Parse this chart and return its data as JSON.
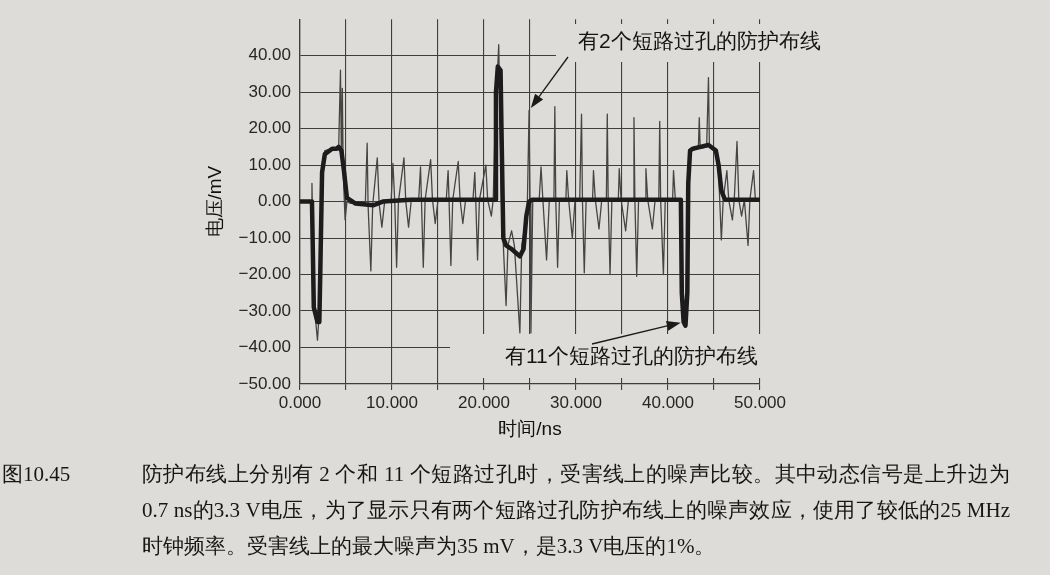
{
  "chart_data": {
    "type": "line",
    "xlabel": "时间/ns",
    "ylabel": "电压/mV",
    "xlim": [
      0,
      50
    ],
    "xticks": [
      {
        "value": 0,
        "label": "0.000"
      },
      {
        "value": 5,
        "label": null
      },
      {
        "value": 10,
        "label": "10.000"
      },
      {
        "value": 15,
        "label": null
      },
      {
        "value": 20,
        "label": "20.000"
      },
      {
        "value": 25,
        "label": null
      },
      {
        "value": 30,
        "label": "30.000"
      },
      {
        "value": 35,
        "label": null
      },
      {
        "value": 40,
        "label": "40.000"
      },
      {
        "value": 45,
        "label": null
      },
      {
        "value": 50,
        "label": "50.000"
      }
    ],
    "ylim": [
      -50,
      50
    ],
    "yticks": [
      {
        "value": -50,
        "label": "−50.00"
      },
      {
        "value": -40,
        "label": "−40.00"
      },
      {
        "value": -30,
        "label": "−30.00"
      },
      {
        "value": -20,
        "label": "−20.00"
      },
      {
        "value": -10,
        "label": "−10.00"
      },
      {
        "value": 0,
        "label": "0.00"
      },
      {
        "value": 10,
        "label": "10.00"
      },
      {
        "value": 20,
        "label": "20.00"
      },
      {
        "value": 30,
        "label": "30.00"
      },
      {
        "value": 40,
        "label": "40.00"
      }
    ],
    "grid": true,
    "series": [
      {
        "name": "有2个短路过孔的防护布线",
        "color": "#454545",
        "x": [
          0,
          1.2,
          1.3,
          1.4,
          1.6,
          1.9,
          2.1,
          2.2,
          2.4,
          2.7,
          3.5,
          4.2,
          4.4,
          4.5,
          4.6,
          4.7,
          4.9,
          5.1,
          5.5,
          7.1,
          7.3,
          7.4,
          7.7,
          7.9,
          8.4,
          8.6,
          8.9,
          9.2,
          9.9,
          10.1,
          10.3,
          10.5,
          10.7,
          11.3,
          11.5,
          11.8,
          12.1,
          12.9,
          13.1,
          13.2,
          13.4,
          13.6,
          14.2,
          14.4,
          14.7,
          15.0,
          15.9,
          16.1,
          16.2,
          16.4,
          16.6,
          17.2,
          17.4,
          17.7,
          18.0,
          18.8,
          19.0,
          19.1,
          19.3,
          19.5,
          20.2,
          20.4,
          20.8,
          21.0,
          21.2,
          21.6,
          21.8,
          21.9,
          22.1,
          22.4,
          22.6,
          23.0,
          23.3,
          23.9,
          24.1,
          24.5,
          24.7,
          24.9,
          25.0,
          25.1,
          25.3,
          26.0,
          26.2,
          26.4,
          26.8,
          27.1,
          27.6,
          27.7,
          27.8,
          28.0,
          28.2,
          28.9,
          29.0,
          29.2,
          29.6,
          29.9,
          30.4,
          30.6,
          30.7,
          30.9,
          31.1,
          31.8,
          31.9,
          32.1,
          32.5,
          32.8,
          33.3,
          33.4,
          33.5,
          33.7,
          33.9,
          34.6,
          34.7,
          34.9,
          35.4,
          35.7,
          36.2,
          36.3,
          36.4,
          36.6,
          36.8,
          37.5,
          37.6,
          37.8,
          38.3,
          38.6,
          39.0,
          39.1,
          39.2,
          39.5,
          39.7,
          40.5,
          40.6,
          40.8,
          41.4,
          41.5,
          41.7,
          41.9,
          42.1,
          42.2,
          42.4,
          42.8,
          43.3,
          43.4,
          43.5,
          44.2,
          44.4,
          44.5,
          45.2,
          45.5,
          45.8,
          46.0,
          46.4,
          46.6,
          47.0,
          47.2,
          47.5,
          47.7,
          48.0,
          48.3,
          48.7,
          48.9,
          49.3,
          49.5,
          50
        ],
        "values": [
          0,
          0,
          5,
          -10,
          -30,
          -38,
          -30,
          -15,
          10,
          14,
          14.5,
          14.5,
          36,
          12,
          31,
          8,
          -5,
          0,
          -0.5,
          -0.5,
          16,
          -1,
          -19,
          -1,
          12,
          -0.5,
          -7,
          0,
          0,
          10.5,
          0,
          -18,
          0,
          12,
          0,
          -7,
          0.5,
          0.5,
          9.5,
          0.5,
          -18,
          0.5,
          11.5,
          0.5,
          -6,
          0.5,
          0.5,
          8.5,
          0.5,
          -17.5,
          0.5,
          11,
          0.5,
          -6,
          0.5,
          0.5,
          8,
          0.5,
          -16,
          0.5,
          10,
          0.5,
          -4,
          0.5,
          20,
          43,
          15,
          0,
          -12,
          -28.5,
          -12,
          -8,
          -12,
          -36,
          -12,
          -6,
          -2,
          25,
          0,
          -36,
          0.5,
          0.5,
          9.5,
          0.5,
          -16,
          0.5,
          0.5,
          26,
          0.5,
          -18,
          0.5,
          0.5,
          8.5,
          0.5,
          -10,
          0.5,
          0.5,
          24,
          0.5,
          -19.5,
          0.5,
          0.5,
          8.5,
          0.5,
          -7.5,
          0.5,
          0.5,
          24,
          0.5,
          -20,
          0.5,
          0.5,
          9,
          0.5,
          -8,
          0.5,
          0.5,
          23,
          0.5,
          -20.5,
          0.5,
          0.5,
          9,
          0.5,
          -7.5,
          0.5,
          0.5,
          22,
          0.5,
          -20,
          0.5,
          0.5,
          8.5,
          0.5,
          0.5,
          -20,
          -30,
          -31,
          -20,
          5,
          14,
          14.5,
          14.5,
          23,
          14.5,
          15,
          34,
          15,
          14,
          8,
          -10.5,
          0.5,
          8.5,
          0.5,
          -5,
          0.5,
          16.5,
          0.5,
          -4,
          0.5,
          -12,
          0.5,
          8.5,
          0.5,
          0.5
        ]
      },
      {
        "name": "有11个短路过孔的防护布线",
        "color": "#1c1c1c",
        "x": [
          0,
          1.3,
          1.4,
          1.5,
          1.9,
          2.1,
          2.2,
          2.4,
          2.7,
          3.5,
          4.0,
          4.2,
          4.5,
          4.8,
          5.1,
          6,
          8,
          9,
          12,
          16,
          21.2,
          21.3,
          21.5,
          21.8,
          21.9,
          22.1,
          22.4,
          23.0,
          23.9,
          24.3,
          24.6,
          24.9,
          25.2,
          41.4,
          41.5,
          41.7,
          41.9,
          42.1,
          42.2,
          42.4,
          42.7,
          43.5,
          44.4,
          45.2,
          45.5,
          45.8,
          46.2,
          50
        ],
        "values": [
          0,
          0,
          -14,
          -29,
          -33,
          -33,
          -20,
          8,
          13,
          14.5,
          14.5,
          15,
          14,
          8,
          1,
          -0.5,
          -1,
          0,
          0.5,
          0.5,
          0.5,
          30,
          37,
          36,
          20,
          -10,
          -12,
          -13,
          -15,
          -13,
          -4,
          0,
          0.5,
          0.5,
          -25,
          -33,
          -34,
          -25,
          5,
          14,
          14.5,
          15,
          15.5,
          14,
          10,
          3,
          0.5,
          0.5
        ]
      }
    ],
    "annotations": [
      "图10.45",
      "防护布线上分别有 2 个和 11 个短路过孔时，受害线上的噪声比较。其中动态信号是上升边为0.7 ns的3.3 V电压，为了显示只有两个短路过孔防护布线上的噪声效应，使用了较低的25 MHz时钟频率。受害线上的最大噪声为35 mV，是3.3 V电压的1%。"
    ]
  }
}
